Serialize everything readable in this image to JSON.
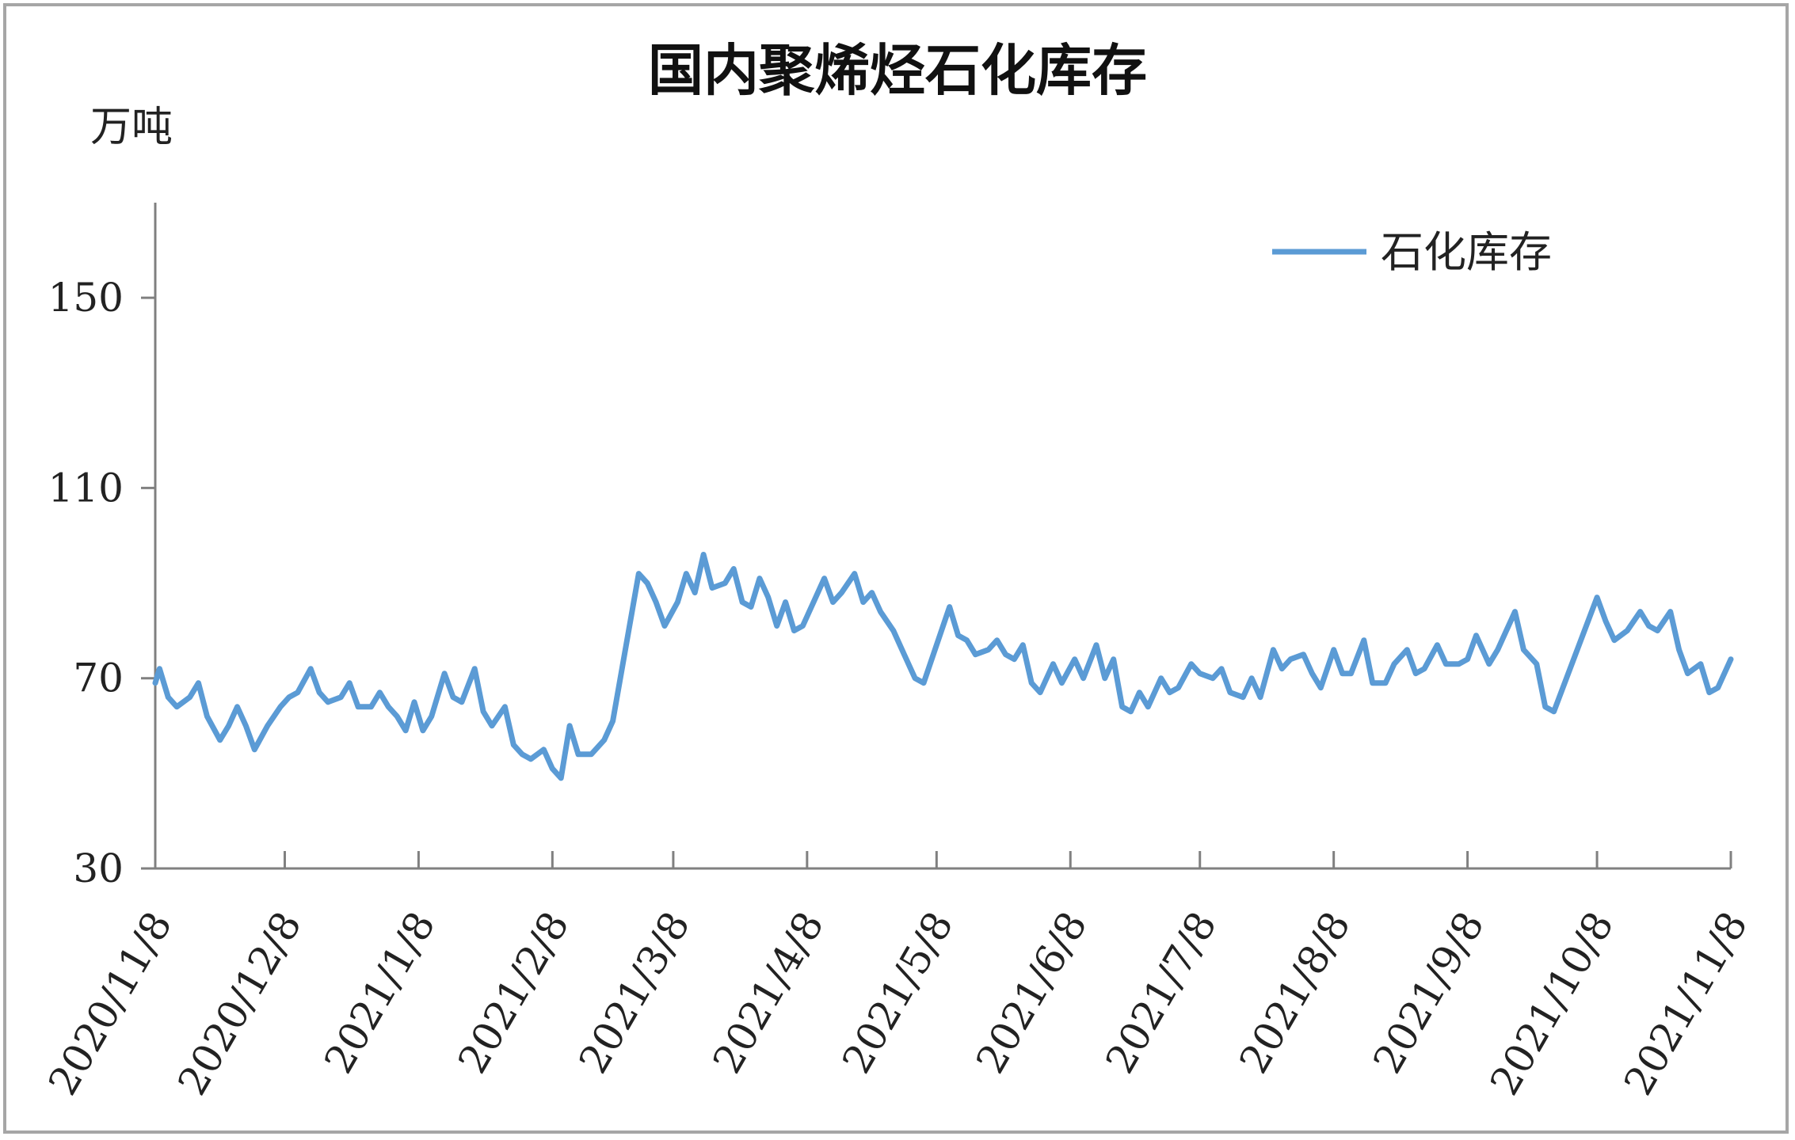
{
  "chart_data": {
    "type": "line",
    "title": "国内聚烯烃石化库存",
    "ylabel": "万吨",
    "xlabel": "",
    "ylim": [
      30,
      170
    ],
    "y_ticks": [
      30,
      70,
      110,
      150
    ],
    "x_ticks": [
      "2020/11/8",
      "2020/12/8",
      "2021/1/8",
      "2021/2/8",
      "2021/3/8",
      "2021/4/8",
      "2021/5/8",
      "2021/6/8",
      "2021/7/8",
      "2021/8/8",
      "2021/9/8",
      "2021/10/8",
      "2021/11/8"
    ],
    "x_range": [
      "2020-11-08",
      "2021-11-08"
    ],
    "legend_position": "top-right",
    "grid": false,
    "series": [
      {
        "name": "石化库存",
        "color": "#5b9bd5",
        "points": [
          [
            "2020-11-08",
            69
          ],
          [
            "2020-11-09",
            72
          ],
          [
            "2020-11-11",
            66
          ],
          [
            "2020-11-13",
            64
          ],
          [
            "2020-11-16",
            66
          ],
          [
            "2020-11-18",
            69
          ],
          [
            "2020-11-20",
            62
          ],
          [
            "2020-11-23",
            57
          ],
          [
            "2020-11-25",
            60
          ],
          [
            "2020-11-27",
            64
          ],
          [
            "2020-11-29",
            60
          ],
          [
            "2020-12-01",
            55
          ],
          [
            "2020-12-04",
            60
          ],
          [
            "2020-12-07",
            64
          ],
          [
            "2020-12-09",
            66
          ],
          [
            "2020-12-11",
            67
          ],
          [
            "2020-12-14",
            72
          ],
          [
            "2020-12-16",
            67
          ],
          [
            "2020-12-18",
            65
          ],
          [
            "2020-12-21",
            66
          ],
          [
            "2020-12-23",
            69
          ],
          [
            "2020-12-25",
            64
          ],
          [
            "2020-12-28",
            64
          ],
          [
            "2020-12-30",
            67
          ],
          [
            "2021-01-01",
            64
          ],
          [
            "2021-01-03",
            62
          ],
          [
            "2021-01-05",
            59
          ],
          [
            "2021-01-07",
            65
          ],
          [
            "2021-01-09",
            59
          ],
          [
            "2021-01-11",
            62
          ],
          [
            "2021-01-14",
            71
          ],
          [
            "2021-01-16",
            66
          ],
          [
            "2021-01-18",
            65
          ],
          [
            "2021-01-21",
            72
          ],
          [
            "2021-01-23",
            63
          ],
          [
            "2021-01-25",
            60
          ],
          [
            "2021-01-28",
            64
          ],
          [
            "2021-01-30",
            56
          ],
          [
            "2021-02-01",
            54
          ],
          [
            "2021-02-03",
            53
          ],
          [
            "2021-02-06",
            55
          ],
          [
            "2021-02-08",
            51
          ],
          [
            "2021-02-10",
            49
          ],
          [
            "2021-02-12",
            60
          ],
          [
            "2021-02-14",
            54
          ],
          [
            "2021-02-17",
            54
          ],
          [
            "2021-02-20",
            57
          ],
          [
            "2021-02-22",
            61
          ],
          [
            "2021-02-28",
            92
          ],
          [
            "2021-03-02",
            90
          ],
          [
            "2021-03-04",
            86
          ],
          [
            "2021-03-06",
            81
          ],
          [
            "2021-03-09",
            86
          ],
          [
            "2021-03-11",
            92
          ],
          [
            "2021-03-13",
            88
          ],
          [
            "2021-03-15",
            96
          ],
          [
            "2021-03-17",
            89
          ],
          [
            "2021-03-20",
            90
          ],
          [
            "2021-03-22",
            93
          ],
          [
            "2021-03-24",
            86
          ],
          [
            "2021-03-26",
            85
          ],
          [
            "2021-03-28",
            91
          ],
          [
            "2021-03-30",
            87
          ],
          [
            "2021-04-01",
            81
          ],
          [
            "2021-04-03",
            86
          ],
          [
            "2021-04-05",
            80
          ],
          [
            "2021-04-07",
            81
          ],
          [
            "2021-04-09",
            85
          ],
          [
            "2021-04-12",
            91
          ],
          [
            "2021-04-14",
            86
          ],
          [
            "2021-04-16",
            88
          ],
          [
            "2021-04-19",
            92
          ],
          [
            "2021-04-21",
            86
          ],
          [
            "2021-04-23",
            88
          ],
          [
            "2021-04-25",
            84
          ],
          [
            "2021-04-28",
            80
          ],
          [
            "2021-04-30",
            76
          ],
          [
            "2021-05-03",
            70
          ],
          [
            "2021-05-05",
            69
          ],
          [
            "2021-05-11",
            85
          ],
          [
            "2021-05-13",
            79
          ],
          [
            "2021-05-15",
            78
          ],
          [
            "2021-05-17",
            75
          ],
          [
            "2021-05-20",
            76
          ],
          [
            "2021-05-22",
            78
          ],
          [
            "2021-05-24",
            75
          ],
          [
            "2021-05-26",
            74
          ],
          [
            "2021-05-28",
            77
          ],
          [
            "2021-05-30",
            69
          ],
          [
            "2021-06-01",
            67
          ],
          [
            "2021-06-04",
            73
          ],
          [
            "2021-06-06",
            69
          ],
          [
            "2021-06-09",
            74
          ],
          [
            "2021-06-11",
            70
          ],
          [
            "2021-06-14",
            77
          ],
          [
            "2021-06-16",
            70
          ],
          [
            "2021-06-18",
            74
          ],
          [
            "2021-06-20",
            64
          ],
          [
            "2021-06-22",
            63
          ],
          [
            "2021-06-24",
            67
          ],
          [
            "2021-06-26",
            64
          ],
          [
            "2021-06-29",
            70
          ],
          [
            "2021-07-01",
            67
          ],
          [
            "2021-07-03",
            68
          ],
          [
            "2021-07-06",
            73
          ],
          [
            "2021-07-08",
            71
          ],
          [
            "2021-07-11",
            70
          ],
          [
            "2021-07-13",
            72
          ],
          [
            "2021-07-15",
            67
          ],
          [
            "2021-07-18",
            66
          ],
          [
            "2021-07-20",
            70
          ],
          [
            "2021-07-22",
            66
          ],
          [
            "2021-07-25",
            76
          ],
          [
            "2021-07-27",
            72
          ],
          [
            "2021-07-29",
            74
          ],
          [
            "2021-08-01",
            75
          ],
          [
            "2021-08-03",
            71
          ],
          [
            "2021-08-05",
            68
          ],
          [
            "2021-08-08",
            76
          ],
          [
            "2021-08-10",
            71
          ],
          [
            "2021-08-12",
            71
          ],
          [
            "2021-08-15",
            78
          ],
          [
            "2021-08-17",
            69
          ],
          [
            "2021-08-20",
            69
          ],
          [
            "2021-08-22",
            73
          ],
          [
            "2021-08-25",
            76
          ],
          [
            "2021-08-27",
            71
          ],
          [
            "2021-08-29",
            72
          ],
          [
            "2021-09-01",
            77
          ],
          [
            "2021-09-03",
            73
          ],
          [
            "2021-09-06",
            73
          ],
          [
            "2021-09-08",
            74
          ],
          [
            "2021-09-10",
            79
          ],
          [
            "2021-09-13",
            73
          ],
          [
            "2021-09-15",
            76
          ],
          [
            "2021-09-17",
            80
          ],
          [
            "2021-09-19",
            84
          ],
          [
            "2021-09-21",
            76
          ],
          [
            "2021-09-24",
            73
          ],
          [
            "2021-09-26",
            64
          ],
          [
            "2021-09-28",
            63
          ],
          [
            "2021-10-08",
            87
          ],
          [
            "2021-10-10",
            82
          ],
          [
            "2021-10-12",
            78
          ],
          [
            "2021-10-15",
            80
          ],
          [
            "2021-10-18",
            84
          ],
          [
            "2021-10-20",
            81
          ],
          [
            "2021-10-22",
            80
          ],
          [
            "2021-10-25",
            84
          ],
          [
            "2021-10-27",
            76
          ],
          [
            "2021-10-29",
            71
          ],
          [
            "2021-11-01",
            73
          ],
          [
            "2021-11-03",
            67
          ],
          [
            "2021-11-05",
            68
          ],
          [
            "2021-11-08",
            74
          ]
        ]
      }
    ]
  }
}
